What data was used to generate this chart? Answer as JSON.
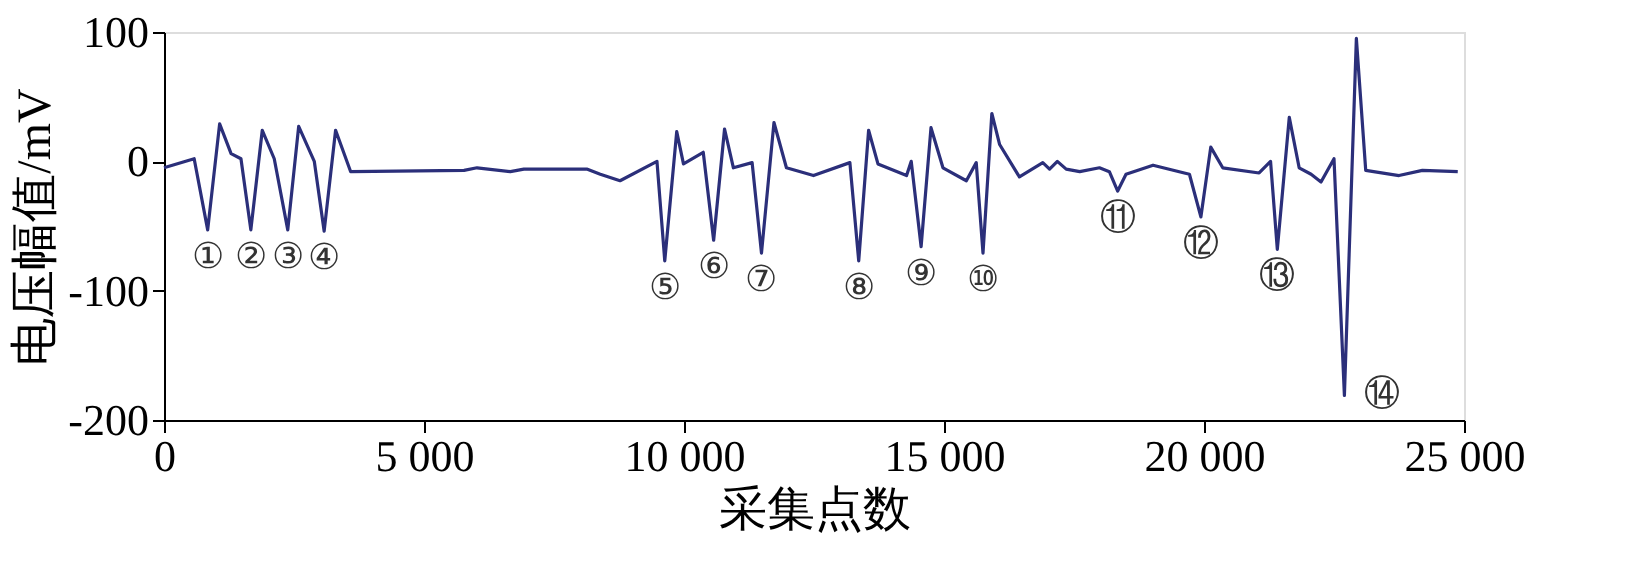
{
  "chart_data": {
    "type": "line",
    "xlabel": "采集点数",
    "ylabel": "电压幅值/mV",
    "xlim": [
      0,
      25000
    ],
    "ylim": [
      -200,
      100
    ],
    "xticks": [
      0,
      {
        "value": 5000,
        "label": "5 000"
      },
      {
        "value": 10000,
        "label": "10 000"
      },
      {
        "value": 15000,
        "label": "15 000"
      },
      {
        "value": 20000,
        "label": "20 000"
      },
      {
        "value": 25000,
        "label": "25 000"
      }
    ],
    "yticks": [
      -200,
      -100,
      0,
      100
    ],
    "grid": false,
    "marker": "none",
    "line_style": "solid",
    "series": [
      {
        "color": "#2b2f7a",
        "x": [
          0,
          580,
          840,
          1070,
          1290,
          1480,
          1670,
          1890,
          2120,
          2380,
          2590,
          2890,
          3080,
          3300,
          3590,
          5770,
          6020,
          6660,
          6920,
          8130,
          8390,
          8770,
          9480,
          9630,
          9860,
          9990,
          10370,
          10570,
          10780,
          10950,
          11310,
          11490,
          11730,
          11970,
          12490,
          13190,
          13360,
          13550,
          13730,
          14280,
          14370,
          14560,
          14750,
          14980,
          15430,
          15620,
          15750,
          15920,
          16070,
          16450,
          16900,
          17030,
          17180,
          17350,
          17610,
          17990,
          18180,
          18340,
          18500,
          19020,
          19720,
          19940,
          20130,
          20360,
          21060,
          21280,
          21410,
          21640,
          21830,
          22060,
          22250,
          22500,
          22700,
          22930,
          23110,
          23750,
          24200,
          24880
        ],
        "values": [
          -5,
          2,
          -53,
          29,
          6,
          2,
          -53,
          24,
          2,
          -53,
          27,
          0,
          -54,
          24,
          -8,
          -7,
          -5,
          -8,
          -6,
          -6,
          -10,
          -15,
          0,
          -77,
          23,
          -2,
          7,
          -61,
          25,
          -5,
          -1,
          -71,
          30,
          -5,
          -11,
          -1,
          -77,
          24,
          -2,
          -11,
          0,
          -66,
          26,
          -5,
          -15,
          -1,
          -71,
          37,
          13,
          -12,
          -1,
          -6,
          0,
          -6,
          -8,
          -5,
          -8,
          -23,
          -10,
          -3,
          -10,
          -43,
          11,
          -5,
          -9,
          0,
          -68,
          34,
          -5,
          -10,
          -16,
          2,
          -181,
          95,
          -7,
          -11,
          -7,
          -8
        ]
      }
    ],
    "annotations": [
      {
        "text": "①",
        "x": 840,
        "y": -53
      },
      {
        "text": "②",
        "x": 1670,
        "y": -53
      },
      {
        "text": "③",
        "x": 2380,
        "y": -53
      },
      {
        "text": "④",
        "x": 3080,
        "y": -54
      },
      {
        "text": "⑤",
        "x": 9630,
        "y": -77
      },
      {
        "text": "⑥",
        "x": 10570,
        "y": -61
      },
      {
        "text": "⑦",
        "x": 11490,
        "y": -71
      },
      {
        "text": "⑧",
        "x": 13360,
        "y": -77
      },
      {
        "text": "⑨",
        "x": 14560,
        "y": -66
      },
      {
        "text": "⑩",
        "x": 15750,
        "y": -71
      },
      {
        "text": "⑪",
        "x": 18340,
        "y": -23
      },
      {
        "text": "⑫",
        "x": 19940,
        "y": -43
      },
      {
        "text": "⑬",
        "x": 21410,
        "y": -68
      },
      {
        "text": "⑭",
        "x": 22700,
        "y": -181
      }
    ]
  }
}
